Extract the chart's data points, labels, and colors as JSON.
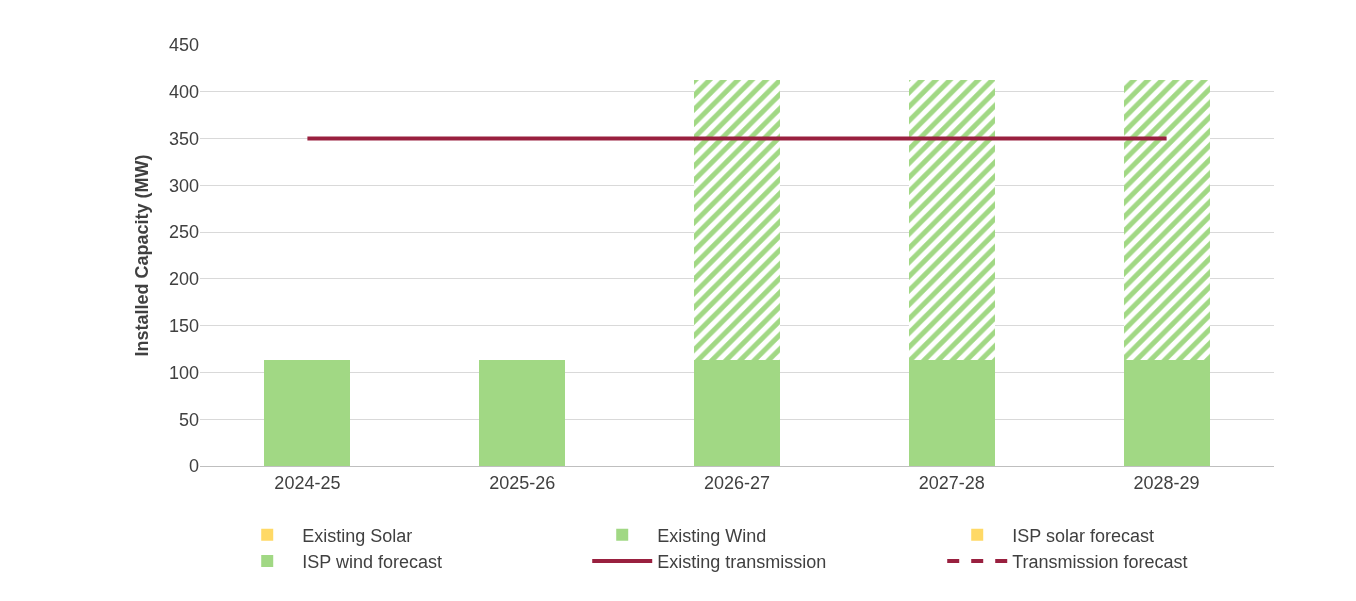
{
  "chart_data": {
    "type": "bar",
    "stacked": true,
    "ylabel": "Installed Capacity (MW)",
    "categories": [
      "2024-25",
      "2025-26",
      "2026-27",
      "2027-28",
      "2028-29"
    ],
    "series": [
      {
        "name": "Existing Solar",
        "color": "#ffd966",
        "values": [
          0,
          0,
          0,
          0,
          0
        ]
      },
      {
        "name": "Existing Wind",
        "color": "#a1d884",
        "values": [
          113,
          113,
          113,
          113,
          113
        ]
      },
      {
        "name": "ISP solar forecast",
        "color": "#ffd966",
        "line_style": "dashed",
        "values": [
          0,
          0,
          0,
          0,
          0
        ]
      },
      {
        "name": "ISP wind forecast",
        "color": "#a1d884",
        "line_style": "dashed",
        "values": [
          0,
          0,
          300,
          300,
          300
        ]
      },
      {
        "name": "Existing transmission",
        "type": "line",
        "color": "#99203f",
        "line_style": "solid",
        "values": [
          350,
          350,
          350,
          350,
          350
        ]
      },
      {
        "name": "Transmission forecast",
        "type": "line",
        "color": "#99203f",
        "line_style": "dashed",
        "values": [
          null,
          null,
          null,
          null,
          null
        ]
      }
    ],
    "ylim": [
      0,
      450
    ],
    "yticks": [
      0,
      50,
      100,
      150,
      200,
      250,
      300,
      350,
      400,
      450
    ],
    "grid": "y",
    "legend": "bottom",
    "marker": "none"
  }
}
